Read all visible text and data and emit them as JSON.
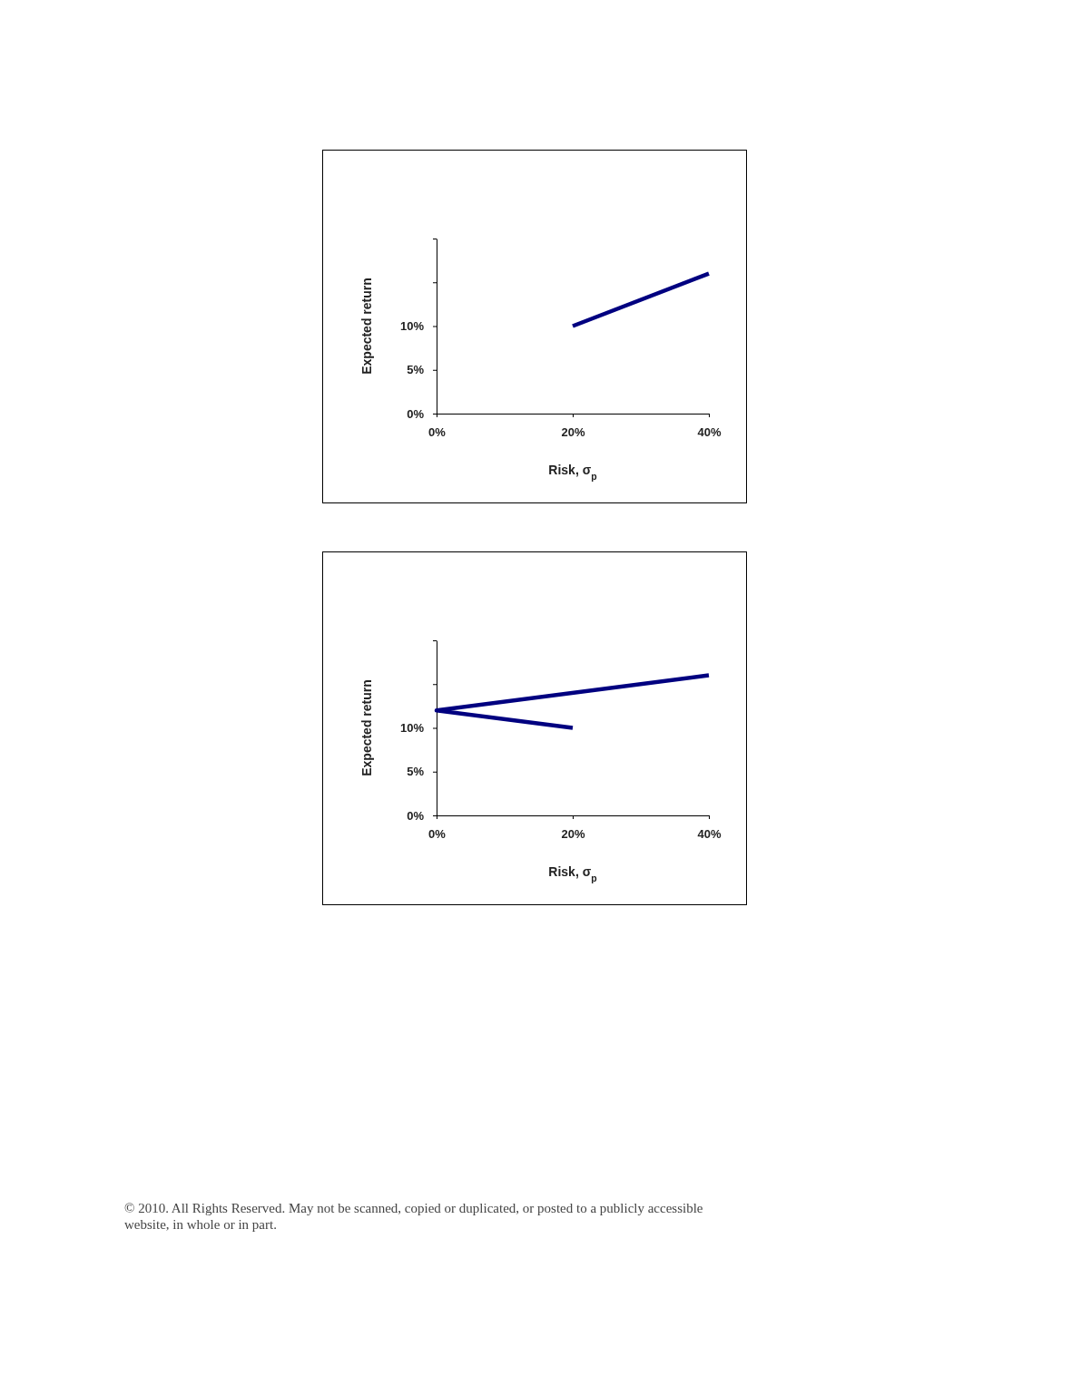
{
  "chart_data": [
    {
      "type": "line",
      "xlabel": "Risk, σ$_{p}$",
      "ylabel": "Expected return",
      "xlim": [
        0,
        40
      ],
      "ylim": [
        0,
        20
      ],
      "xticks": [
        {
          "value": 0,
          "label": "0%"
        },
        {
          "value": 20,
          "label": "20%"
        },
        {
          "value": 40,
          "label": "40%"
        }
      ],
      "yticks": [
        {
          "value": 0,
          "label": "0%"
        },
        {
          "value": 5,
          "label": "5%"
        },
        {
          "value": 10,
          "label": "10%"
        },
        {
          "value": 15,
          "label": null
        },
        {
          "value": 20,
          "label": null
        }
      ],
      "series": [
        {
          "color": "#000080",
          "x": [
            20,
            40
          ],
          "values": [
            10,
            16
          ]
        }
      ]
    },
    {
      "type": "line",
      "xlabel": "Risk, σ$_{p}$",
      "ylabel": "Expected return",
      "xlim": [
        0,
        40
      ],
      "ylim": [
        0,
        20
      ],
      "xticks": [
        {
          "value": 0,
          "label": "0%"
        },
        {
          "value": 20,
          "label": "20%"
        },
        {
          "value": 40,
          "label": "40%"
        }
      ],
      "yticks": [
        {
          "value": 0,
          "label": "0%"
        },
        {
          "value": 5,
          "label": "5%"
        },
        {
          "value": 10,
          "label": "10%"
        },
        {
          "value": 15,
          "label": null
        },
        {
          "value": 20,
          "label": null
        }
      ],
      "series": [
        {
          "color": "#000080",
          "x": [
            20,
            0,
            40
          ],
          "values": [
            10,
            12,
            16
          ]
        }
      ],
      "annotations": [
        "© 2010. All Rights Reserved. May not be scanned, copied or duplicated, or posted to a publicly accessible website, in whole or in part."
      ]
    }
  ]
}
